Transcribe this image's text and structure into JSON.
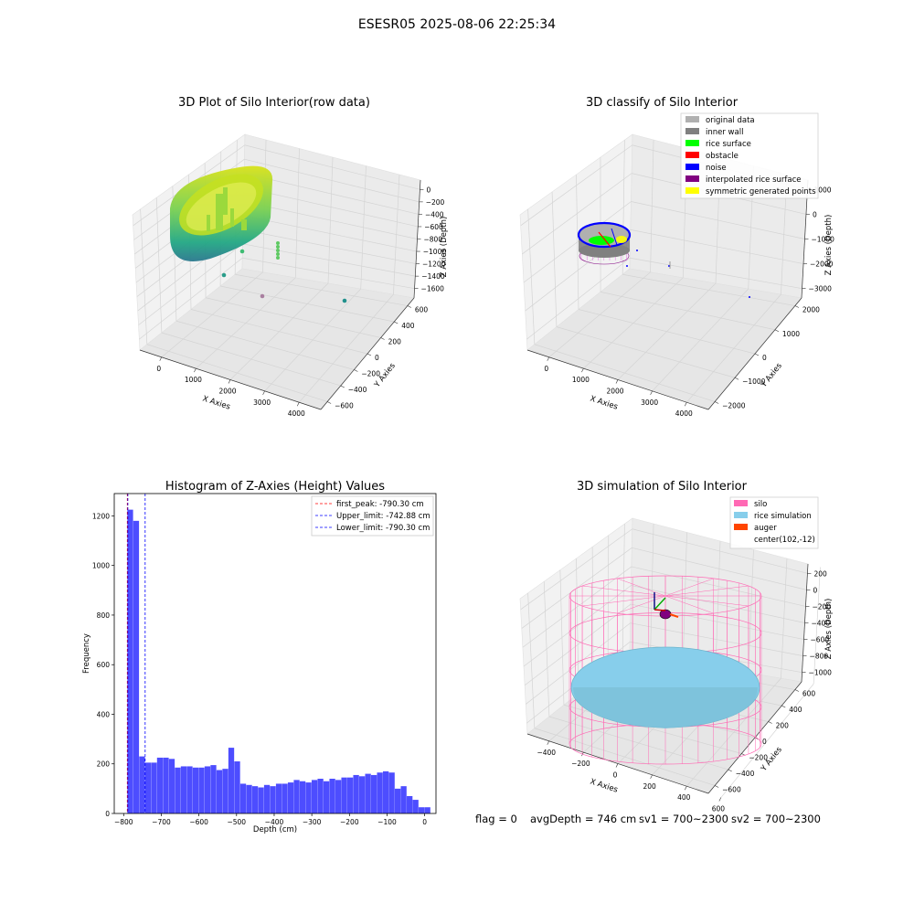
{
  "suptitle": "ESESR05 2025-08-06 22:25:34",
  "footer": {
    "flag": "flag = 0",
    "avg_depth": "avgDepth = 746 cm",
    "sv1": "sv1 = 700~2300",
    "sv2": "sv2 = 700~2300"
  },
  "colors": {
    "hist_bar": "#4d4dff",
    "original_data": "#b0b0b0",
    "inner_wall": "#808080",
    "rice_surface": "#00ff00",
    "obstacle": "#ff0000",
    "noise": "#0000ff",
    "interpolated": "#800080",
    "symmetric": "#ffff00",
    "silo": "#ff69b4",
    "rice_sim": "#87ceeb",
    "auger": "#ff4500"
  },
  "chart_data": [
    {
      "type": "scatter",
      "projection": "3d",
      "title": "3D Plot of Silo Interior(row data)",
      "xlabel": "X Axies",
      "ylabel": "Y Axies",
      "zlabel": "Z Axies (Depth)",
      "xticks": [
        "0",
        "1000",
        "2000",
        "3000",
        "4000"
      ],
      "yticks": [
        "600",
        "400",
        "200",
        "0",
        "−200",
        "−400",
        "−600"
      ],
      "zticks": [
        "0",
        "−200",
        "−400",
        "−600",
        "−800",
        "−1000",
        "−1200",
        "−1400",
        "−1600"
      ],
      "xlim": [
        -500,
        4500
      ],
      "ylim": [
        -700,
        700
      ],
      "zlim": [
        -1700,
        100
      ],
      "colormap": "viridis",
      "grid": true
    },
    {
      "type": "scatter",
      "projection": "3d",
      "title": "3D classify of Silo Interior",
      "xlabel": "X Axies",
      "ylabel": "Y Axies",
      "zlabel": "Z Axies (Depth)",
      "xticks": [
        "0",
        "1000",
        "2000",
        "3000",
        "4000"
      ],
      "yticks": [
        "2000",
        "1000",
        "0",
        "−1000",
        "−2000"
      ],
      "zticks": [
        "1000",
        "0",
        "−1000",
        "−2000",
        "−3000"
      ],
      "xlim": [
        -500,
        4500
      ],
      "ylim": [
        -2300,
        2300
      ],
      "zlim": [
        -3300,
        1200
      ],
      "legend_position": "upper right",
      "legend": [
        {
          "label": "original data",
          "color_key": "original_data"
        },
        {
          "label": "inner wall",
          "color_key": "inner_wall"
        },
        {
          "label": "rice surface",
          "color_key": "rice_surface"
        },
        {
          "label": "obstacle",
          "color_key": "obstacle"
        },
        {
          "label": "noise",
          "color_key": "noise"
        },
        {
          "label": "interpolated rice surface",
          "color_key": "interpolated"
        },
        {
          "label": "symmetric generated points",
          "color_key": "symmetric"
        }
      ],
      "grid": true
    },
    {
      "type": "bar",
      "title": "Histogram of Z-Axies (Height) Values",
      "xlabel": "Depth (cm)",
      "ylabel": "Frequency",
      "xticks": [
        -800,
        -700,
        -600,
        -500,
        -400,
        -300,
        -200,
        -100,
        0
      ],
      "yticks": [
        0,
        200,
        400,
        600,
        800,
        1000,
        1200
      ],
      "xlim": [
        -825,
        30
      ],
      "ylim": [
        0,
        1290
      ],
      "bin_start": -790.3,
      "bin_width": 15.8,
      "values": [
        1225,
        1180,
        230,
        205,
        205,
        225,
        225,
        220,
        185,
        190,
        190,
        185,
        185,
        190,
        195,
        175,
        180,
        265,
        210,
        120,
        115,
        110,
        105,
        115,
        110,
        120,
        120,
        125,
        135,
        130,
        125,
        135,
        140,
        130,
        140,
        135,
        145,
        145,
        155,
        150,
        160,
        155,
        165,
        170,
        165,
        100,
        110,
        70,
        55,
        25,
        25
      ],
      "vlines": [
        {
          "label": "first_peak: -790.30 cm",
          "x": -790.3,
          "color": "#ff0000"
        },
        {
          "label": "Upper_limit: -742.88 cm",
          "x": -742.88,
          "color": "#0000ff"
        },
        {
          "label": "Lower_limit: -790.30 cm",
          "x": -790.3,
          "color": "#0000ff"
        }
      ],
      "legend_position": "upper right",
      "grid": false
    },
    {
      "type": "scatter",
      "projection": "3d",
      "title": "3D simulation of Silo Interior",
      "xlabel": "X Axies",
      "ylabel": "Y Axies",
      "zlabel": "Z Axies (Depth)",
      "xticks": [
        "−400",
        "−200",
        "0",
        "200",
        "400",
        "600"
      ],
      "yticks": [
        "600",
        "400",
        "200",
        "0",
        "−200",
        "−400",
        "−600"
      ],
      "zticks": [
        "200",
        "0",
        "−200",
        "−400",
        "−600",
        "−800",
        "−1000"
      ],
      "xlim": [
        -500,
        700
      ],
      "ylim": [
        -700,
        700
      ],
      "zlim": [
        -1050,
        300
      ],
      "legend_position": "upper right",
      "legend": [
        {
          "label": "silo",
          "color_key": "silo"
        },
        {
          "label": "rice simulation",
          "color_key": "rice_sim"
        },
        {
          "label": "auger",
          "color_key": "auger"
        },
        {
          "label": "center(102,-12)",
          "color_key": ""
        }
      ],
      "grid": true
    }
  ]
}
